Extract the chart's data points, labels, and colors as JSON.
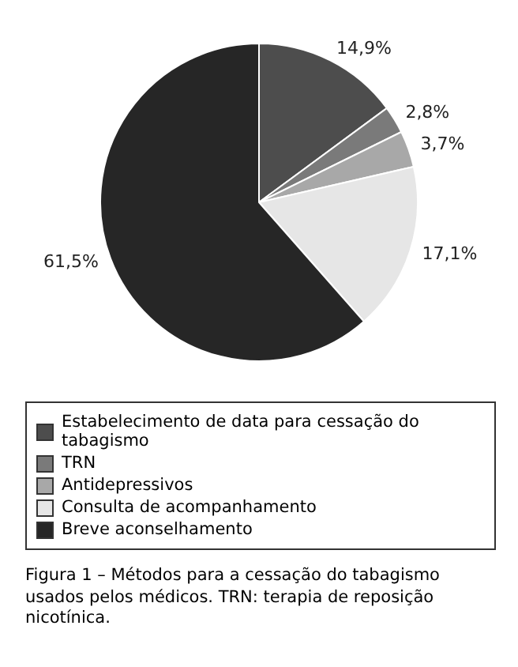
{
  "chart_data": {
    "type": "pie",
    "categories": [
      "Estabelecimento de data para cessação do tabagismo",
      "TRN",
      "Antidepressivos",
      "Consulta de acompanhamento",
      "Breve aconselhamento"
    ],
    "values": [
      14.9,
      2.8,
      3.7,
      17.1,
      61.5
    ],
    "colors": [
      "#4d4d4d",
      "#7a7a7a",
      "#a8a8a8",
      "#e6e6e6",
      "#262626"
    ],
    "value_labels": [
      "14,9%",
      "2,8%",
      "3,7%",
      "17,1%",
      "61,5%"
    ],
    "legend": "bottom",
    "annotations": [
      "Figura 1 – Métodos para a cessação do tabagismo usados pelos médicos. TRN: terapia de reposição nicotínica."
    ]
  }
}
